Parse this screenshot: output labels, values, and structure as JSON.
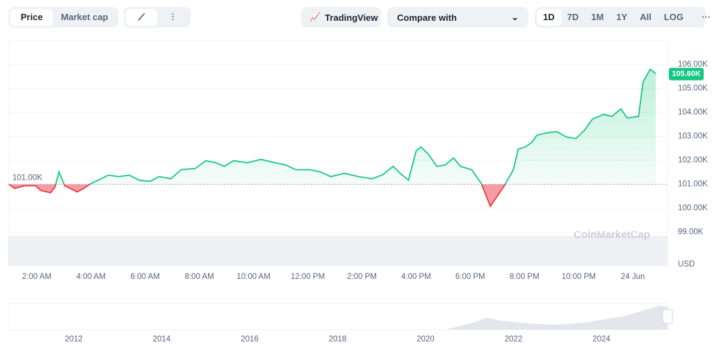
{
  "toolbar": {
    "tabs": [
      "Price",
      "Market cap"
    ],
    "tradingview": "TradingView",
    "compare": "Compare with",
    "ranges": [
      "1D",
      "7D",
      "1M",
      "1Y",
      "All",
      "LOG"
    ],
    "more": "···"
  },
  "chart_data": {
    "type": "line",
    "color": "#16c784",
    "below_color": "#ea3943",
    "x": [
      0.97,
      1.18,
      1.56,
      1.95,
      2.15,
      2.51,
      2.67,
      2.82,
      3.03,
      3.23,
      3.49,
      3.74,
      4.0,
      4.38,
      4.64,
      5.03,
      5.41,
      5.79,
      6.18,
      6.51,
      6.95,
      7.33,
      7.85,
      8.23,
      8.62,
      8.92,
      9.26,
      9.77,
      10.28,
      10.79,
      11.18,
      11.56,
      12.08,
      12.46,
      12.85,
      13.36,
      13.87,
      14.38,
      14.77,
      15.15,
      15.41,
      15.72,
      16.0,
      16.18,
      16.44,
      16.77,
      17.08,
      17.38,
      17.64,
      18.05,
      18.41,
      18.74,
      19.0,
      19.26,
      19.59,
      19.77,
      20.03,
      20.28,
      20.46,
      20.79,
      21.18,
      21.56,
      21.9,
      22.21,
      22.51,
      22.92,
      23.23,
      23.56,
      23.79,
      24.21,
      24.38,
      24.64,
      24.85
    ],
    "values": [
      101.0,
      100.83,
      100.94,
      100.94,
      100.74,
      100.65,
      100.88,
      101.52,
      100.94,
      100.83,
      100.68,
      100.83,
      101.03,
      101.23,
      101.38,
      101.32,
      101.38,
      101.17,
      101.12,
      101.32,
      101.23,
      101.61,
      101.66,
      101.98,
      101.9,
      101.75,
      101.98,
      101.9,
      102.04,
      101.9,
      101.81,
      101.61,
      101.61,
      101.52,
      101.32,
      101.46,
      101.32,
      101.23,
      101.4,
      101.75,
      101.46,
      101.17,
      102.39,
      102.56,
      102.27,
      101.75,
      101.81,
      102.1,
      101.75,
      101.61,
      101.03,
      100.08,
      100.51,
      100.94,
      101.61,
      102.47,
      102.56,
      102.76,
      103.05,
      103.14,
      103.2,
      102.97,
      102.91,
      103.25,
      103.72,
      103.92,
      103.83,
      104.15,
      103.77,
      103.83,
      105.28,
      105.8,
      105.62
    ],
    "xlim": [
      0.95,
      25.28
    ],
    "ylim": [
      97.6,
      107.01
    ],
    "xticks": [
      {
        "value": 2,
        "label": "2:00 AM"
      },
      {
        "value": 4,
        "label": "4:00 AM"
      },
      {
        "value": 6,
        "label": "6:00 AM"
      },
      {
        "value": 8,
        "label": "8:00 AM"
      },
      {
        "value": 10,
        "label": "10:00 AM"
      },
      {
        "value": 12,
        "label": "12:00 PM"
      },
      {
        "value": 14,
        "label": "2:00 PM"
      },
      {
        "value": 16,
        "label": "4:00 PM"
      },
      {
        "value": 18,
        "label": "6:00 PM"
      },
      {
        "value": 20,
        "label": "8:00 PM"
      },
      {
        "value": 22,
        "label": "10:00 PM"
      },
      {
        "value": 24,
        "label": "24 Jun"
      }
    ],
    "yticks": [
      {
        "value": 99,
        "label": "99.00K"
      },
      {
        "value": 100,
        "label": "100.00K"
      },
      {
        "value": 101,
        "label": "101.00K"
      },
      {
        "value": 102,
        "label": "102.00K"
      },
      {
        "value": 103,
        "label": "103.00K"
      },
      {
        "value": 104,
        "label": "104.00K"
      },
      {
        "value": 105,
        "label": "105.00K"
      },
      {
        "value": 106,
        "label": "106.00K"
      }
    ],
    "baseline": {
      "value": 101,
      "label": "101.00K"
    },
    "current": {
      "value": 105.6,
      "label": "105.60K"
    },
    "y_unit": "USD",
    "watermark": "CoinMarketCap",
    "grid": true
  },
  "navigator": {
    "labels": [
      "2012",
      "2014",
      "2016",
      "2018",
      "2020",
      "2022",
      "2024"
    ]
  }
}
